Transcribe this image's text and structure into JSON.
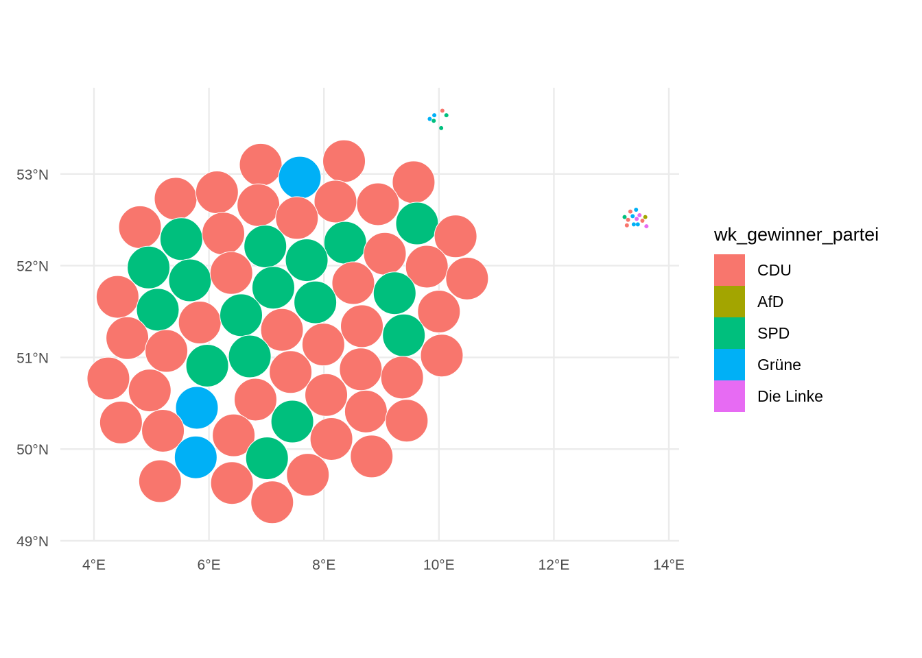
{
  "chart_data": {
    "type": "scatter",
    "title": "",
    "xlabel": "",
    "ylabel": "",
    "xlim": [
      3.4,
      14.2
    ],
    "ylim": [
      48.9,
      53.95
    ],
    "grid": true,
    "x_ticks": [
      {
        "value": 4,
        "label": "4°E"
      },
      {
        "value": 6,
        "label": "6°E"
      },
      {
        "value": 8,
        "label": "8°E"
      },
      {
        "value": 10,
        "label": "10°E"
      },
      {
        "value": 12,
        "label": "12°E"
      },
      {
        "value": 14,
        "label": "14°E"
      }
    ],
    "y_ticks": [
      {
        "value": 49,
        "label": "49°N"
      },
      {
        "value": 50,
        "label": "50°N"
      },
      {
        "value": 51,
        "label": "51°N"
      },
      {
        "value": 52,
        "label": "52°N"
      },
      {
        "value": 53,
        "label": "53°N"
      }
    ],
    "legend": {
      "title": "wk_gewinner_partei",
      "position": "right",
      "entries": [
        {
          "label": "CDU",
          "color": "#f8766d"
        },
        {
          "label": "AfD",
          "color": "#a3a500"
        },
        {
          "label": "SPD",
          "color": "#00bf7d"
        },
        {
          "label": "Grüne",
          "color": "#00b0f6"
        },
        {
          "label": "Die Linke",
          "color": "#e76bf3"
        }
      ]
    },
    "large_point_radius_km_note": "",
    "points": [
      {
        "x": 6.9,
        "y": 53.1,
        "party": "CDU",
        "size": "large"
      },
      {
        "x": 7.58,
        "y": 52.96,
        "party": "Grüne",
        "size": "large"
      },
      {
        "x": 8.35,
        "y": 53.14,
        "party": "CDU",
        "size": "large"
      },
      {
        "x": 5.42,
        "y": 52.73,
        "party": "CDU",
        "size": "large"
      },
      {
        "x": 6.14,
        "y": 52.8,
        "party": "CDU",
        "size": "large"
      },
      {
        "x": 6.86,
        "y": 52.66,
        "party": "CDU",
        "size": "large"
      },
      {
        "x": 8.2,
        "y": 52.7,
        "party": "CDU",
        "size": "large"
      },
      {
        "x": 7.53,
        "y": 52.52,
        "party": "CDU",
        "size": "large"
      },
      {
        "x": 9.56,
        "y": 52.91,
        "party": "CDU",
        "size": "large"
      },
      {
        "x": 8.94,
        "y": 52.67,
        "party": "CDU",
        "size": "large"
      },
      {
        "x": 4.8,
        "y": 52.42,
        "party": "CDU",
        "size": "large"
      },
      {
        "x": 5.52,
        "y": 52.29,
        "party": "SPD",
        "size": "large"
      },
      {
        "x": 6.25,
        "y": 52.35,
        "party": "CDU",
        "size": "large"
      },
      {
        "x": 6.98,
        "y": 52.21,
        "party": "SPD",
        "size": "large"
      },
      {
        "x": 8.37,
        "y": 52.25,
        "party": "SPD",
        "size": "large"
      },
      {
        "x": 9.62,
        "y": 52.46,
        "party": "SPD",
        "size": "large"
      },
      {
        "x": 10.29,
        "y": 52.32,
        "party": "CDU",
        "size": "large"
      },
      {
        "x": 4.95,
        "y": 51.98,
        "party": "SPD",
        "size": "large"
      },
      {
        "x": 5.67,
        "y": 51.84,
        "party": "SPD",
        "size": "large"
      },
      {
        "x": 6.39,
        "y": 51.92,
        "party": "CDU",
        "size": "large"
      },
      {
        "x": 7.7,
        "y": 52.06,
        "party": "SPD",
        "size": "large"
      },
      {
        "x": 9.06,
        "y": 52.13,
        "party": "CDU",
        "size": "large"
      },
      {
        "x": 9.79,
        "y": 51.99,
        "party": "CDU",
        "size": "large"
      },
      {
        "x": 10.49,
        "y": 51.86,
        "party": "CDU",
        "size": "large"
      },
      {
        "x": 4.41,
        "y": 51.66,
        "party": "CDU",
        "size": "large"
      },
      {
        "x": 7.12,
        "y": 51.76,
        "party": "SPD",
        "size": "large"
      },
      {
        "x": 8.51,
        "y": 51.81,
        "party": "CDU",
        "size": "large"
      },
      {
        "x": 9.23,
        "y": 51.7,
        "party": "SPD",
        "size": "large"
      },
      {
        "x": 5.11,
        "y": 51.52,
        "party": "SPD",
        "size": "large"
      },
      {
        "x": 5.84,
        "y": 51.38,
        "party": "CDU",
        "size": "large"
      },
      {
        "x": 6.56,
        "y": 51.46,
        "party": "SPD",
        "size": "large"
      },
      {
        "x": 7.85,
        "y": 51.6,
        "party": "SPD",
        "size": "large"
      },
      {
        "x": 10.0,
        "y": 51.5,
        "party": "CDU",
        "size": "large"
      },
      {
        "x": 4.58,
        "y": 51.21,
        "party": "CDU",
        "size": "large"
      },
      {
        "x": 7.27,
        "y": 51.3,
        "party": "CDU",
        "size": "large"
      },
      {
        "x": 8.66,
        "y": 51.34,
        "party": "CDU",
        "size": "large"
      },
      {
        "x": 9.39,
        "y": 51.24,
        "party": "SPD",
        "size": "large"
      },
      {
        "x": 5.26,
        "y": 51.07,
        "party": "CDU",
        "size": "large"
      },
      {
        "x": 6.71,
        "y": 51.01,
        "party": "SPD",
        "size": "large"
      },
      {
        "x": 7.99,
        "y": 51.14,
        "party": "CDU",
        "size": "large"
      },
      {
        "x": 10.05,
        "y": 51.02,
        "party": "CDU",
        "size": "large"
      },
      {
        "x": 4.25,
        "y": 50.77,
        "party": "CDU",
        "size": "large"
      },
      {
        "x": 5.97,
        "y": 50.91,
        "party": "SPD",
        "size": "large"
      },
      {
        "x": 7.42,
        "y": 50.84,
        "party": "CDU",
        "size": "large"
      },
      {
        "x": 8.64,
        "y": 50.87,
        "party": "CDU",
        "size": "large"
      },
      {
        "x": 9.36,
        "y": 50.78,
        "party": "CDU",
        "size": "large"
      },
      {
        "x": 4.97,
        "y": 50.64,
        "party": "CDU",
        "size": "large"
      },
      {
        "x": 6.81,
        "y": 50.54,
        "party": "CDU",
        "size": "large"
      },
      {
        "x": 8.04,
        "y": 50.59,
        "party": "CDU",
        "size": "large"
      },
      {
        "x": 5.79,
        "y": 50.45,
        "party": "Grüne",
        "size": "large"
      },
      {
        "x": 8.73,
        "y": 50.41,
        "party": "CDU",
        "size": "large"
      },
      {
        "x": 4.47,
        "y": 50.29,
        "party": "CDU",
        "size": "large"
      },
      {
        "x": 7.45,
        "y": 50.3,
        "party": "SPD",
        "size": "large"
      },
      {
        "x": 9.44,
        "y": 50.31,
        "party": "CDU",
        "size": "large"
      },
      {
        "x": 5.2,
        "y": 50.2,
        "party": "CDU",
        "size": "large"
      },
      {
        "x": 6.43,
        "y": 50.15,
        "party": "CDU",
        "size": "large"
      },
      {
        "x": 8.13,
        "y": 50.11,
        "party": "CDU",
        "size": "large"
      },
      {
        "x": 5.77,
        "y": 49.91,
        "party": "Grüne",
        "size": "large"
      },
      {
        "x": 7.01,
        "y": 49.9,
        "party": "SPD",
        "size": "large"
      },
      {
        "x": 8.83,
        "y": 49.92,
        "party": "CDU",
        "size": "large"
      },
      {
        "x": 7.72,
        "y": 49.72,
        "party": "CDU",
        "size": "large"
      },
      {
        "x": 5.15,
        "y": 49.65,
        "party": "CDU",
        "size": "large"
      },
      {
        "x": 6.4,
        "y": 49.63,
        "party": "CDU",
        "size": "large"
      },
      {
        "x": 7.1,
        "y": 49.42,
        "party": "CDU",
        "size": "large"
      },
      {
        "x": 10.06,
        "y": 53.69,
        "party": "CDU",
        "size": "small"
      },
      {
        "x": 9.92,
        "y": 53.64,
        "party": "Grüne",
        "size": "small"
      },
      {
        "x": 10.13,
        "y": 53.64,
        "party": "SPD",
        "size": "small"
      },
      {
        "x": 9.84,
        "y": 53.6,
        "party": "Grüne",
        "size": "small"
      },
      {
        "x": 9.91,
        "y": 53.58,
        "party": "SPD",
        "size": "small"
      },
      {
        "x": 10.04,
        "y": 53.5,
        "party": "SPD",
        "size": "small"
      },
      {
        "x": 13.33,
        "y": 52.59,
        "party": "CDU",
        "size": "small"
      },
      {
        "x": 13.43,
        "y": 52.61,
        "party": "Grüne",
        "size": "small"
      },
      {
        "x": 13.23,
        "y": 52.53,
        "party": "SPD",
        "size": "small"
      },
      {
        "x": 13.37,
        "y": 52.54,
        "party": "Grüne",
        "size": "small"
      },
      {
        "x": 13.49,
        "y": 52.55,
        "party": "Die Linke",
        "size": "small"
      },
      {
        "x": 13.59,
        "y": 52.53,
        "party": "AfD",
        "size": "small"
      },
      {
        "x": 13.29,
        "y": 52.5,
        "party": "CDU",
        "size": "small"
      },
      {
        "x": 13.44,
        "y": 52.51,
        "party": "Die Linke",
        "size": "small"
      },
      {
        "x": 13.54,
        "y": 52.49,
        "party": "CDU",
        "size": "small"
      },
      {
        "x": 13.27,
        "y": 52.44,
        "party": "CDU",
        "size": "small"
      },
      {
        "x": 13.39,
        "y": 52.45,
        "party": "Grüne",
        "size": "small"
      },
      {
        "x": 13.46,
        "y": 52.45,
        "party": "Grüne",
        "size": "small"
      },
      {
        "x": 13.61,
        "y": 52.43,
        "party": "Die Linke",
        "size": "small"
      }
    ]
  }
}
